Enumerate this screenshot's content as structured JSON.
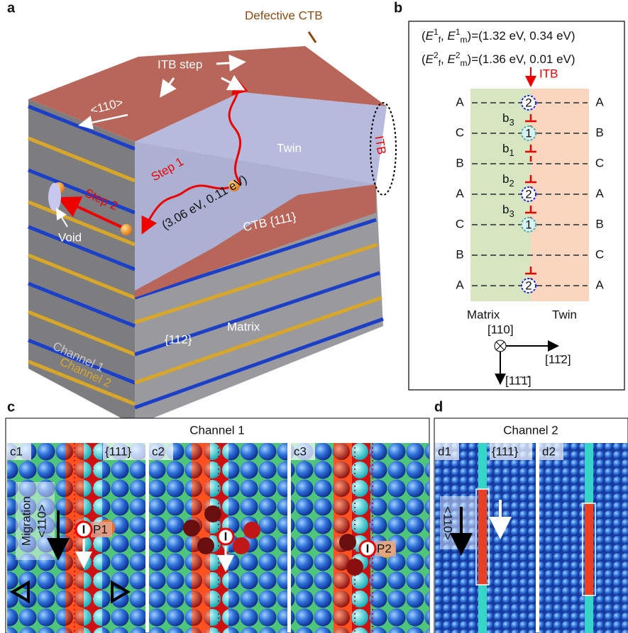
{
  "panel_a": {
    "label": "a",
    "defective_ctb": "Defective CTB",
    "itb_step": "ITB step",
    "direction": "<110>",
    "twin": "Twin",
    "itb": "ITB",
    "step1": "Step 1",
    "step2": "Step 2",
    "energy": "(3.06 eV, 0.11 eV)",
    "void": "Void",
    "ctb": "CTB {111}",
    "channel1": "Channel 1",
    "channel2": "Channel 2",
    "plane": "{112}",
    "matrix": "Matrix"
  },
  "panel_b": {
    "label": "b",
    "energy_lines": [
      [
        "(",
        "E",
        "1",
        "f",
        ", ",
        "E",
        "1",
        "m",
        ")=(1.32 eV, 0.34 eV)"
      ],
      [
        "(",
        "E",
        "2",
        "f",
        ", ",
        "E",
        "2",
        "m",
        ")=(1.36 eV, 0.01 eV)"
      ]
    ],
    "itb": "ITB",
    "left_layers": [
      "A",
      "C",
      "B",
      "A",
      "C",
      "B",
      "A"
    ],
    "right_layers": [
      "A",
      "B",
      "C",
      "A",
      "B",
      "C",
      "A"
    ],
    "steps": [
      {
        "base": "b",
        "sub": "3"
      },
      {
        "base": "b",
        "sub": "1"
      },
      {
        "base": "b",
        "sub": "2"
      },
      {
        "base": "b",
        "sub": "3"
      }
    ],
    "sites": [
      "2",
      "1",
      "2",
      "1",
      "2"
    ],
    "matrix": "Matrix",
    "twin": "Twin",
    "axis_out": "[110]",
    "axis_right": "[11̄2]",
    "axis_down": "[11̄1̄]"
  },
  "panel_c": {
    "label": "c",
    "title": "Channel 1",
    "c1": "c1",
    "plane": "{111}",
    "c2": "c2",
    "c3": "c3",
    "migration": "Migration",
    "direction": "<110>",
    "i1": "I",
    "p1": "P1",
    "i2": "I",
    "i3": "I",
    "p2": "P2"
  },
  "panel_d": {
    "label": "d",
    "title": "Channel 2",
    "d1": "d1",
    "plane": "{111}",
    "d2": "d2",
    "direction": "<110>"
  }
}
